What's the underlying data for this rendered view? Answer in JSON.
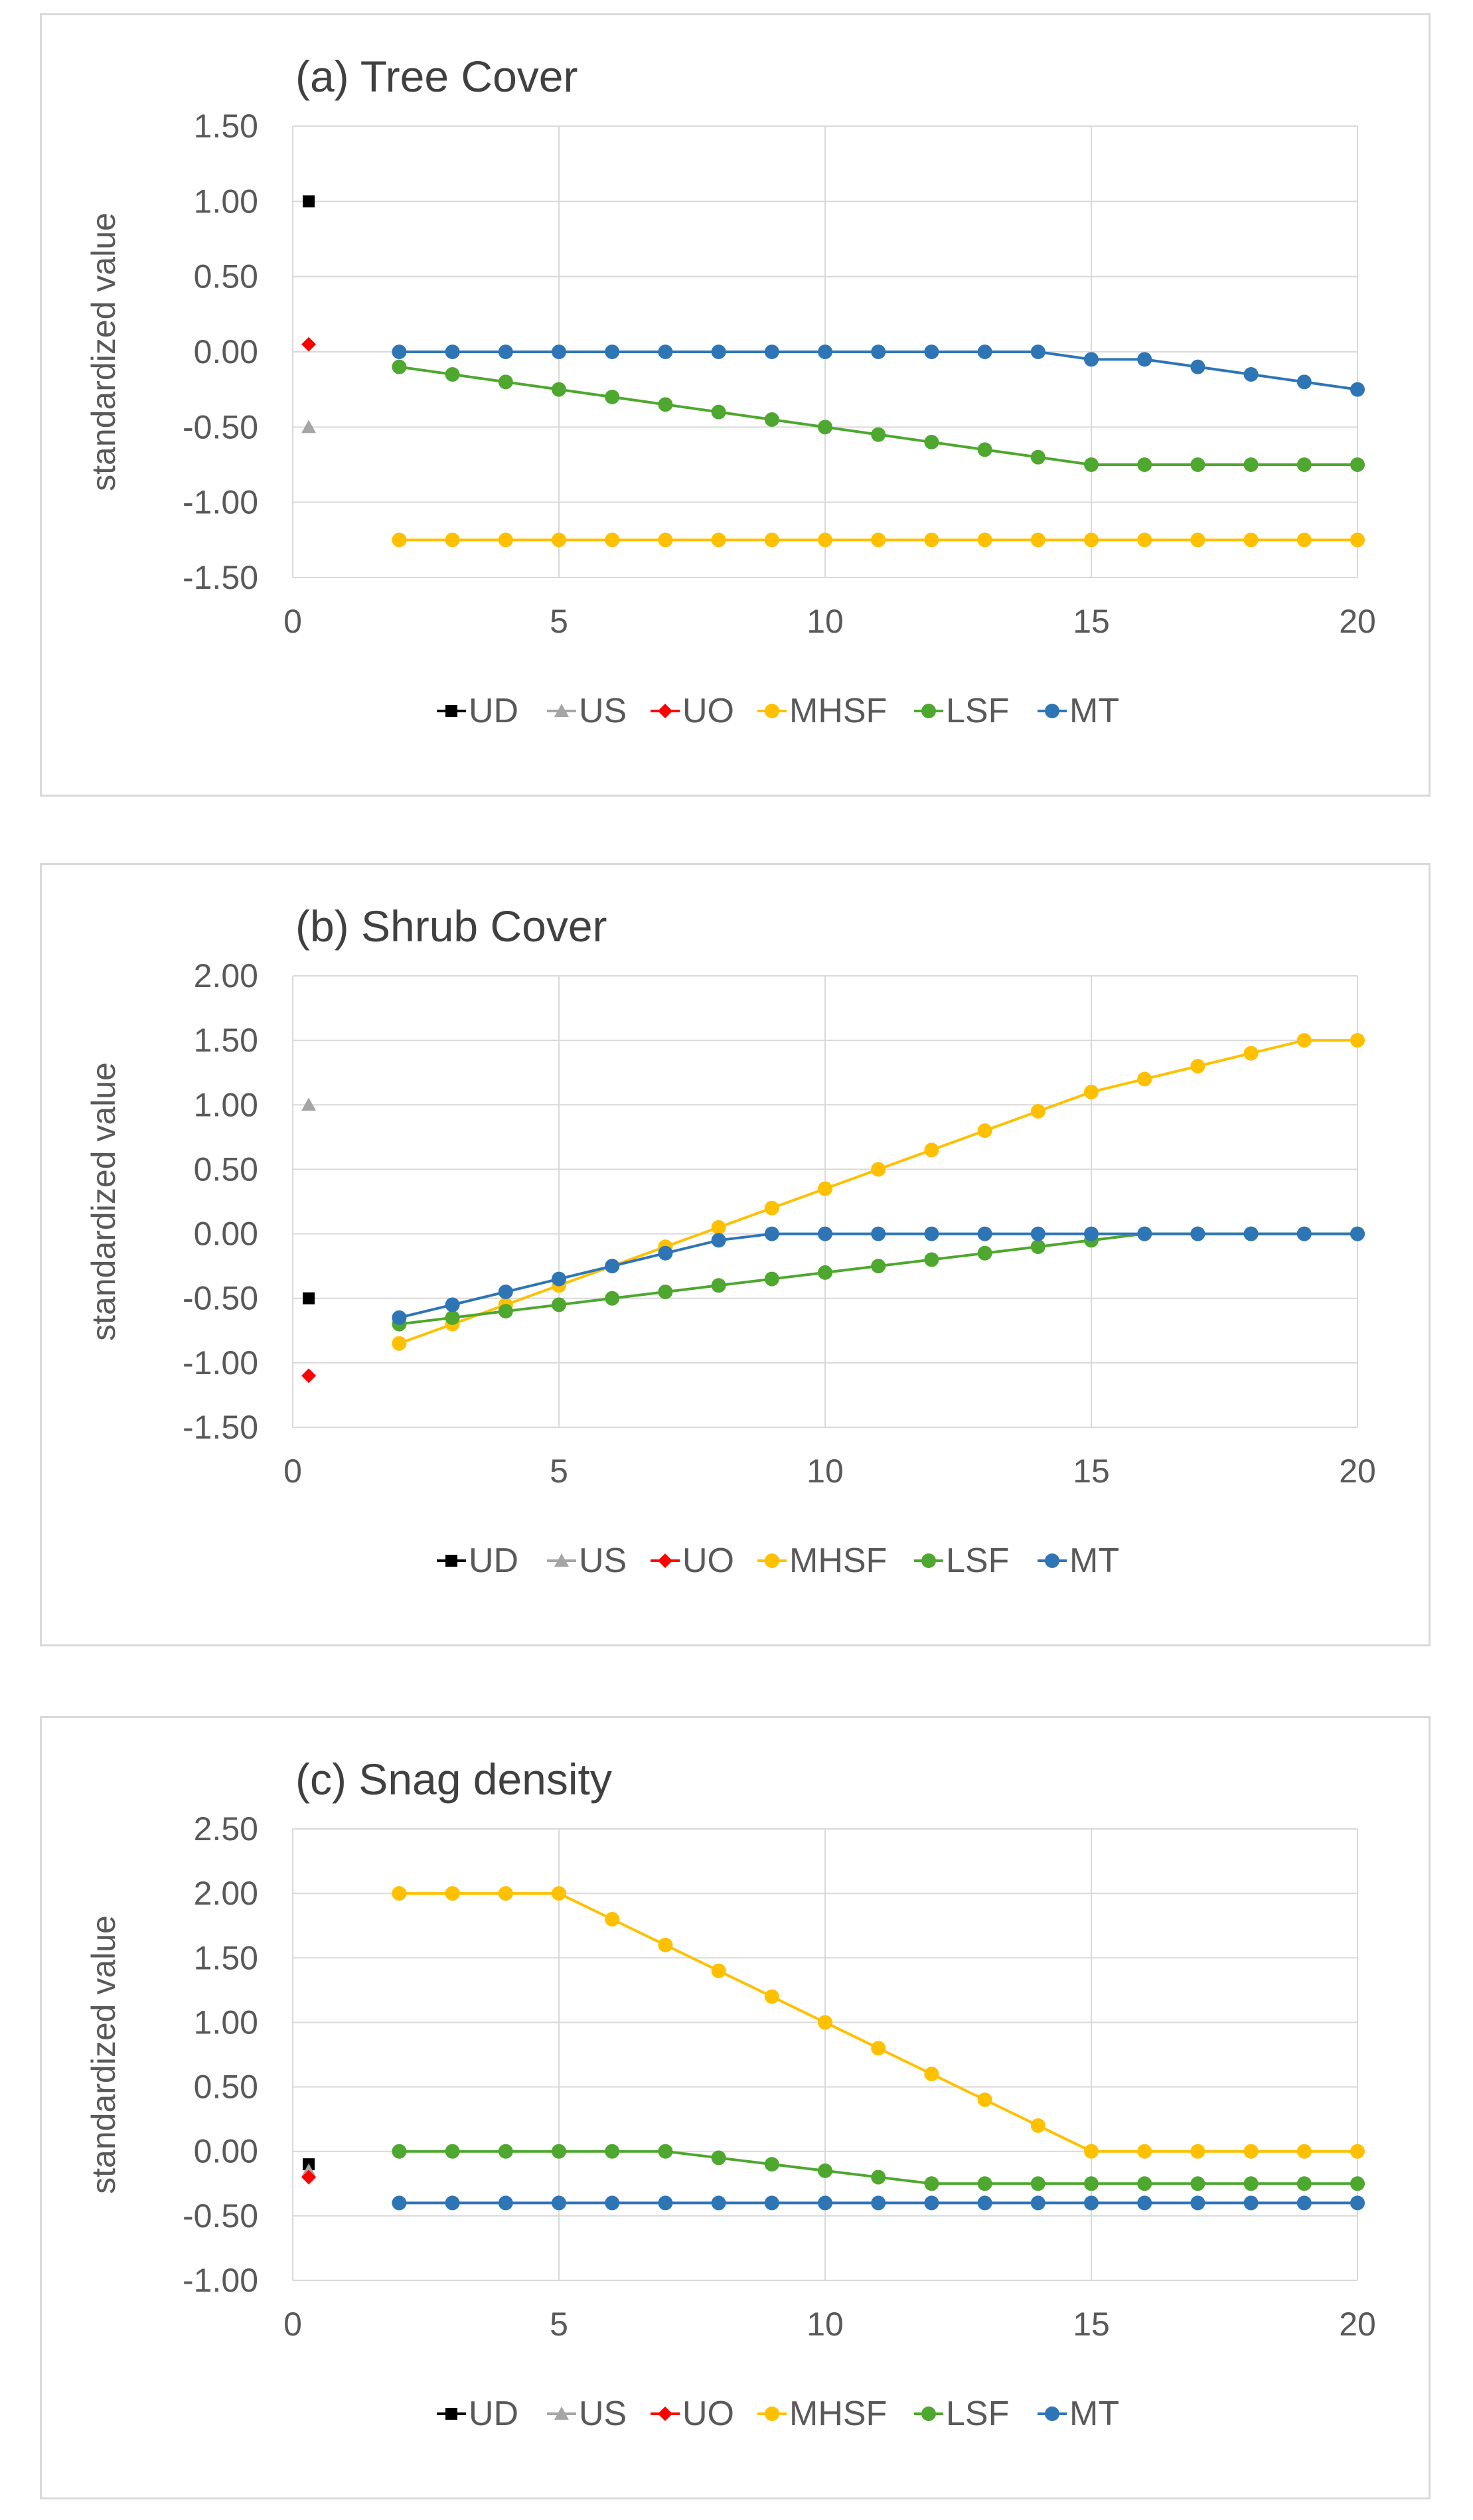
{
  "colors": {
    "UD": "#000000",
    "US": "#a5a5a5",
    "UO": "#ff0000",
    "MHSF": "#ffc000",
    "LSF": "#4ea72e",
    "MT": "#2e75b6",
    "grid": "#d9d9d9",
    "text": "#595959"
  },
  "chart_data": [
    {
      "type": "line",
      "title": "(a) Tree Cover",
      "xlabel": "",
      "ylabel": "standardized value",
      "xlim": [
        0,
        20
      ],
      "ylim": [
        -1.5,
        1.5
      ],
      "xticks": [
        "0",
        "5",
        "10",
        "15",
        "20"
      ],
      "yticks": [
        "1.50",
        "1.00",
        "0.50",
        "0.00",
        "-0.50",
        "-1.00",
        "-1.50"
      ],
      "legend": [
        "UD",
        "US",
        "UO",
        "MHSF",
        "LSF",
        "MT"
      ],
      "series": [
        {
          "name": "UD",
          "x": [
            0.3
          ],
          "values": [
            1.0
          ],
          "marker": "square"
        },
        {
          "name": "US",
          "x": [
            0.3
          ],
          "values": [
            -0.5
          ],
          "marker": "triangle"
        },
        {
          "name": "UO",
          "x": [
            0.3
          ],
          "values": [
            0.05
          ],
          "marker": "diamond"
        },
        {
          "name": "MHSF",
          "x": [
            2,
            3,
            4,
            5,
            6,
            7,
            8,
            9,
            10,
            11,
            12,
            13,
            14,
            15,
            16,
            17,
            18,
            19,
            20
          ],
          "values": [
            -1.25,
            -1.25,
            -1.25,
            -1.25,
            -1.25,
            -1.25,
            -1.25,
            -1.25,
            -1.25,
            -1.25,
            -1.25,
            -1.25,
            -1.25,
            -1.25,
            -1.25,
            -1.25,
            -1.25,
            -1.25,
            -1.25
          ],
          "marker": "circle"
        },
        {
          "name": "LSF",
          "x": [
            2,
            3,
            4,
            5,
            6,
            7,
            8,
            9,
            10,
            11,
            12,
            13,
            14,
            15,
            16,
            17,
            18,
            19,
            20
          ],
          "values": [
            -0.1,
            -0.15,
            -0.2,
            -0.25,
            -0.3,
            -0.35,
            -0.4,
            -0.45,
            -0.5,
            -0.55,
            -0.6,
            -0.65,
            -0.7,
            -0.75,
            -0.75,
            -0.75,
            -0.75,
            -0.75,
            -0.75
          ],
          "marker": "circle"
        },
        {
          "name": "MT",
          "x": [
            2,
            3,
            4,
            5,
            6,
            7,
            8,
            9,
            10,
            11,
            12,
            13,
            14,
            15,
            16,
            17,
            18,
            19,
            20
          ],
          "values": [
            0,
            0,
            0,
            0,
            0,
            0,
            0,
            0,
            0,
            0,
            0,
            0,
            0,
            -0.05,
            -0.05,
            -0.1,
            -0.15,
            -0.2,
            -0.25
          ],
          "marker": "circle"
        }
      ]
    },
    {
      "type": "line",
      "title": "(b) Shrub Cover",
      "xlabel": "",
      "ylabel": "standardized value",
      "xlim": [
        0,
        20
      ],
      "ylim": [
        -1.5,
        2.0
      ],
      "xticks": [
        "0",
        "5",
        "10",
        "15",
        "20"
      ],
      "yticks": [
        "2.00",
        "1.50",
        "1.00",
        "0.50",
        "0.00",
        "-0.50",
        "-1.00",
        "-1.50"
      ],
      "legend": [
        "UD",
        "US",
        "UO",
        "MHSF",
        "LSF",
        "MT"
      ],
      "series": [
        {
          "name": "UD",
          "x": [
            0.3
          ],
          "values": [
            -0.5
          ],
          "marker": "square"
        },
        {
          "name": "US",
          "x": [
            0.3
          ],
          "values": [
            1.0
          ],
          "marker": "triangle"
        },
        {
          "name": "UO",
          "x": [
            0.3
          ],
          "values": [
            -1.1
          ],
          "marker": "diamond"
        },
        {
          "name": "MHSF",
          "x": [
            2,
            3,
            4,
            5,
            6,
            7,
            8,
            9,
            10,
            11,
            12,
            13,
            14,
            15,
            16,
            17,
            18,
            19,
            20
          ],
          "values": [
            -0.85,
            -0.7,
            -0.55,
            -0.4,
            -0.25,
            -0.1,
            0.05,
            0.2,
            0.35,
            0.5,
            0.65,
            0.8,
            0.95,
            1.1,
            1.2,
            1.3,
            1.4,
            1.5,
            1.5
          ],
          "marker": "circle"
        },
        {
          "name": "LSF",
          "x": [
            2,
            3,
            4,
            5,
            6,
            7,
            8,
            9,
            10,
            11,
            12,
            13,
            14,
            15,
            16,
            17,
            18,
            19,
            20
          ],
          "values": [
            -0.7,
            -0.65,
            -0.6,
            -0.55,
            -0.5,
            -0.45,
            -0.4,
            -0.35,
            -0.3,
            -0.25,
            -0.2,
            -0.15,
            -0.1,
            -0.05,
            0,
            0,
            0,
            0,
            0
          ],
          "marker": "circle"
        },
        {
          "name": "MT",
          "x": [
            2,
            3,
            4,
            5,
            6,
            7,
            8,
            9,
            10,
            11,
            12,
            13,
            14,
            15,
            16,
            17,
            18,
            19,
            20
          ],
          "values": [
            -0.65,
            -0.55,
            -0.45,
            -0.35,
            -0.25,
            -0.15,
            -0.05,
            0,
            0,
            0,
            0,
            0,
            0,
            0,
            0,
            0,
            0,
            0,
            0
          ],
          "marker": "circle"
        }
      ]
    },
    {
      "type": "line",
      "title": "(c) Snag density",
      "xlabel": "",
      "ylabel": "standardized value",
      "xlim": [
        0,
        20
      ],
      "ylim": [
        -1.0,
        2.5
      ],
      "xticks": [
        "0",
        "5",
        "10",
        "15",
        "20"
      ],
      "yticks": [
        "2.50",
        "2.00",
        "1.50",
        "1.00",
        "0.50",
        "0.00",
        "-0.50",
        "-1.00"
      ],
      "legend": [
        "UD",
        "US",
        "UO",
        "MHSF",
        "LSF",
        "MT"
      ],
      "series": [
        {
          "name": "UD",
          "x": [
            0.3
          ],
          "values": [
            -0.1
          ],
          "marker": "square"
        },
        {
          "name": "US",
          "x": [
            0.3
          ],
          "values": [
            -0.15
          ],
          "marker": "triangle"
        },
        {
          "name": "UO",
          "x": [
            0.3
          ],
          "values": [
            -0.2
          ],
          "marker": "diamond"
        },
        {
          "name": "MHSF",
          "x": [
            2,
            3,
            4,
            5,
            6,
            7,
            8,
            9,
            10,
            11,
            12,
            13,
            14,
            15,
            16,
            17,
            18,
            19,
            20
          ],
          "values": [
            2,
            2,
            2,
            2,
            1.8,
            1.6,
            1.4,
            1.2,
            1.0,
            0.8,
            0.6,
            0.4,
            0.2,
            0,
            0,
            0,
            0,
            0,
            0
          ],
          "marker": "circle"
        },
        {
          "name": "LSF",
          "x": [
            2,
            3,
            4,
            5,
            6,
            7,
            8,
            9,
            10,
            11,
            12,
            13,
            14,
            15,
            16,
            17,
            18,
            19,
            20
          ],
          "values": [
            0,
            0,
            0,
            0,
            0,
            0,
            -0.05,
            -0.1,
            -0.15,
            -0.2,
            -0.25,
            -0.25,
            -0.25,
            -0.25,
            -0.25,
            -0.25,
            -0.25,
            -0.25,
            -0.25
          ],
          "marker": "circle"
        },
        {
          "name": "MT",
          "x": [
            2,
            3,
            4,
            5,
            6,
            7,
            8,
            9,
            10,
            11,
            12,
            13,
            14,
            15,
            16,
            17,
            18,
            19,
            20
          ],
          "values": [
            -0.4,
            -0.4,
            -0.4,
            -0.4,
            -0.4,
            -0.4,
            -0.4,
            -0.4,
            -0.4,
            -0.4,
            -0.4,
            -0.4,
            -0.4,
            -0.4,
            -0.4,
            -0.4,
            -0.4,
            -0.4,
            -0.4
          ],
          "marker": "circle"
        }
      ]
    }
  ]
}
